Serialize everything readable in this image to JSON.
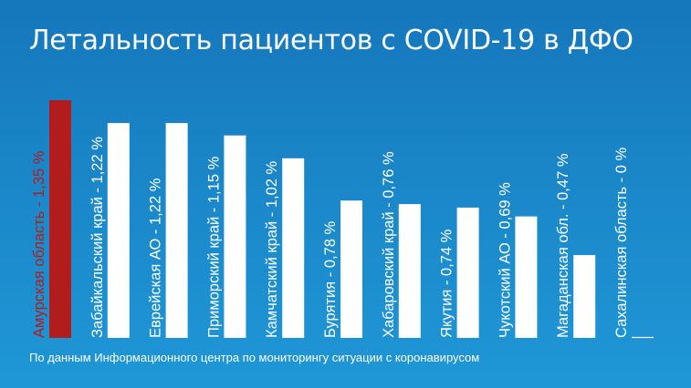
{
  "chart_data": {
    "type": "bar",
    "title": "Летальность пациентов с COVID-19 в ДФО",
    "source": "По данным Информационного центра по мониторингу ситуации с коронавирусом",
    "ylim": [
      0,
      1.35
    ],
    "grid": false,
    "legend": "none",
    "highlight_color": "#b11d1d",
    "bar_color": "#ffffff",
    "text_color": "#ffffff",
    "categories": [
      "Амурская область - 1,35 %",
      "Забайкальский край - 1,22 %",
      "Еврейская АО - 1,22 %",
      "Приморский край - 1,15 %",
      "Камчатский край - 1,02 %",
      "Бурятия - 0,78 %",
      "Хабаровский край - 0,76 %",
      "Якутия - 0,74 %",
      "Чукотский АО - 0,69 %",
      "Магаданская обл. - 0,47 %",
      "Сахалинская область - 0 %"
    ],
    "values": [
      1.35,
      1.22,
      1.22,
      1.15,
      1.02,
      0.78,
      0.76,
      0.74,
      0.69,
      0.47,
      0
    ],
    "highlight_index": 0
  }
}
